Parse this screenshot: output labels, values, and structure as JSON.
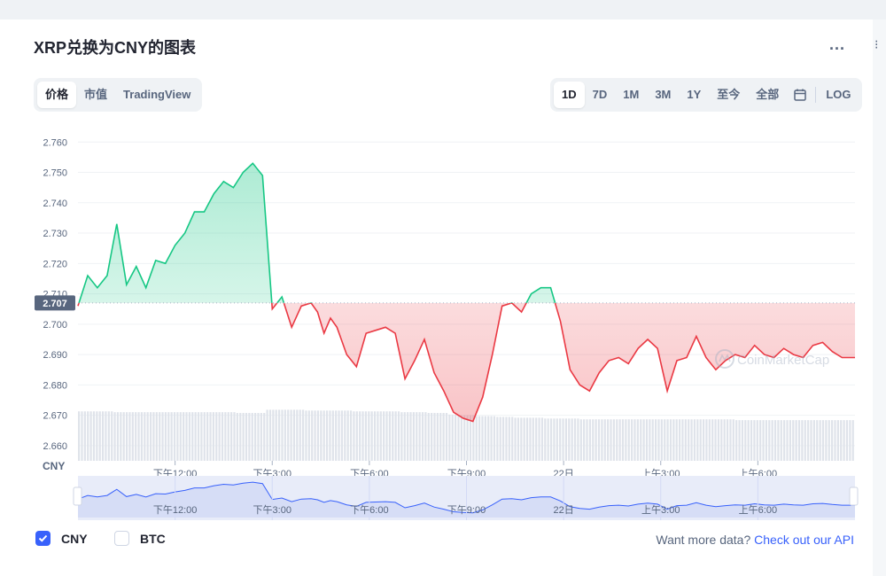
{
  "title": "XRP兑换为CNY的图表",
  "more_label": "...",
  "view_tabs": [
    {
      "label": "价格",
      "active": true
    },
    {
      "label": "市值",
      "active": false
    },
    {
      "label": "TradingView",
      "active": false
    }
  ],
  "range_tabs": [
    {
      "label": "1D",
      "active": true
    },
    {
      "label": "7D",
      "active": false
    },
    {
      "label": "1M",
      "active": false
    },
    {
      "label": "3M",
      "active": false
    },
    {
      "label": "1Y",
      "active": false
    },
    {
      "label": "至今",
      "active": false
    },
    {
      "label": "全部",
      "active": false
    }
  ],
  "log_label": "LOG",
  "icons": {
    "calendar": "calendar-icon",
    "check": "check-icon",
    "more": "more-icon"
  },
  "colors": {
    "up": "#16c784",
    "down": "#ea3943",
    "accent": "#3861fb",
    "current_price_badge": "#58667e"
  },
  "current_price_label": "2.707",
  "currency_label": "CNY",
  "watermark": "CoinMarketCap",
  "legend": [
    {
      "label": "CNY",
      "checked": true
    },
    {
      "label": "BTC",
      "checked": false
    }
  ],
  "footer": {
    "text": "Want more data? ",
    "link": "Check out our API"
  },
  "chart_data": {
    "type": "line",
    "y_unit": "CNY",
    "ylim": [
      2.655,
      2.763
    ],
    "yticks": [
      "2.760",
      "2.750",
      "2.740",
      "2.730",
      "2.720",
      "2.710",
      "2.700",
      "2.690",
      "2.680",
      "2.670",
      "2.660"
    ],
    "xlim": [
      0,
      24
    ],
    "x_ticks": [
      {
        "x": 3.0,
        "label": "下午12:00"
      },
      {
        "x": 6.0,
        "label": "下午3:00"
      },
      {
        "x": 9.0,
        "label": "下午6:00"
      },
      {
        "x": 12.0,
        "label": "下午9:00"
      },
      {
        "x": 15.0,
        "label": "22日"
      },
      {
        "x": 18.0,
        "label": "上午3:00"
      },
      {
        "x": 21.0,
        "label": "上午6:00"
      }
    ],
    "baseline": 2.707,
    "series": [
      {
        "x": [
          0,
          0.3,
          0.6,
          0.9,
          1.2,
          1.5,
          1.8,
          2.1,
          2.4,
          2.7,
          3.0,
          3.3,
          3.6,
          3.9,
          4.2,
          4.5,
          4.8,
          5.1,
          5.4,
          5.7,
          6.0,
          6.3,
          6.6,
          6.9,
          7.2,
          7.4,
          7.6,
          7.8,
          8.0,
          8.3,
          8.6,
          8.9,
          9.2,
          9.5,
          9.8,
          10.1,
          10.4,
          10.7,
          11.0,
          11.3,
          11.6,
          11.9,
          12.2,
          12.5,
          12.8,
          13.1,
          13.4,
          13.7,
          14.0,
          14.3,
          14.6,
          14.9,
          15.2,
          15.5,
          15.8,
          16.1,
          16.4,
          16.7,
          17.0,
          17.3,
          17.6,
          17.9,
          18.2,
          18.5,
          18.8,
          19.1,
          19.4,
          19.7,
          20.0,
          20.3,
          20.6,
          20.9,
          21.2,
          21.5,
          21.8,
          22.1,
          22.4,
          22.7,
          23.0,
          23.3,
          23.6,
          24.0
        ],
        "values": [
          2.706,
          2.716,
          2.712,
          2.716,
          2.733,
          2.713,
          2.719,
          2.712,
          2.721,
          2.72,
          2.726,
          2.73,
          2.737,
          2.737,
          2.743,
          2.747,
          2.745,
          2.75,
          2.753,
          2.749,
          2.705,
          2.709,
          2.699,
          2.706,
          2.707,
          2.704,
          2.697,
          2.702,
          2.699,
          2.69,
          2.686,
          2.697,
          2.698,
          2.699,
          2.697,
          2.682,
          2.688,
          2.695,
          2.684,
          2.678,
          2.671,
          2.669,
          2.668,
          2.676,
          2.69,
          2.706,
          2.707,
          2.704,
          2.71,
          2.712,
          2.712,
          2.701,
          2.685,
          2.68,
          2.678,
          2.684,
          2.688,
          2.689,
          2.687,
          2.692,
          2.695,
          2.692,
          2.678,
          2.688,
          2.689,
          2.696,
          2.689,
          2.685,
          2.688,
          2.69,
          2.689,
          2.693,
          2.69,
          2.689,
          2.692,
          2.69,
          2.689,
          2.693,
          2.694,
          2.691,
          2.689,
          2.689
        ],
        "volume": [
          0.62,
          0.62,
          0.62,
          0.62,
          0.61,
          0.61,
          0.61,
          0.61,
          0.61,
          0.61,
          0.61,
          0.61,
          0.61,
          0.61,
          0.61,
          0.61,
          0.61,
          0.6,
          0.6,
          0.6,
          0.64,
          0.64,
          0.64,
          0.64,
          0.63,
          0.63,
          0.63,
          0.63,
          0.63,
          0.62,
          0.62,
          0.62,
          0.62,
          0.62,
          0.61,
          0.61,
          0.61,
          0.6,
          0.6,
          0.58,
          0.57,
          0.57,
          0.56,
          0.56,
          0.55,
          0.55,
          0.54,
          0.54,
          0.54,
          0.53,
          0.53,
          0.53,
          0.53,
          0.52,
          0.52,
          0.52,
          0.52,
          0.52,
          0.52,
          0.52,
          0.52,
          0.52,
          0.52,
          0.52,
          0.52,
          0.52,
          0.52,
          0.52,
          0.52,
          0.51,
          0.51,
          0.51,
          0.51,
          0.51,
          0.51,
          0.51,
          0.51,
          0.51,
          0.51,
          0.51,
          0.51,
          0.51
        ]
      }
    ]
  }
}
